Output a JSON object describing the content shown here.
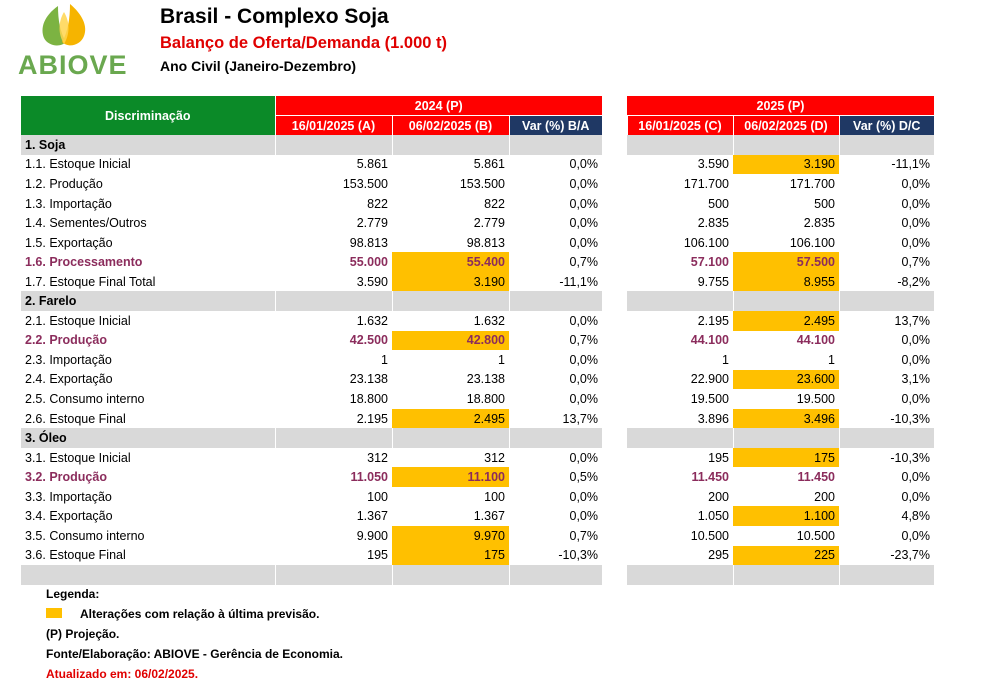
{
  "header": {
    "logo_text": "ABIOVE",
    "title": "Brasil - Complexo Soja",
    "subtitle": "Balanço de Oferta/Demanda (1.000 t)",
    "period": "Ano Civil (Janeiro-Dezembro)"
  },
  "colors": {
    "header_green": "#0b8a28",
    "header_red": "#ff0000",
    "header_navy": "#1f3864",
    "highlight": "#ffc000",
    "section_gray": "#d9d9d9",
    "emphasis_text": "#8b2c5c"
  },
  "table": {
    "discrimination_label": "Discriminação",
    "year_2024": "2024 (P)",
    "year_2025": "2025 (P)",
    "col_a": "16/01/2025 (A)",
    "col_b": "06/02/2025 (B)",
    "col_var_ba": "Var (%) B/A",
    "col_c": "16/01/2025 (C)",
    "col_d": "06/02/2025 (D)",
    "col_var_dc": "Var (%) D/C",
    "sections": [
      {
        "name": "1. Soja",
        "rows": [
          {
            "label": "1.1. Estoque Inicial",
            "a": "5.861",
            "b": "5.861",
            "var_ba": "0,0%",
            "c": "3.590",
            "d": "3.190",
            "var_dc": "-11,1%",
            "hl_b": false,
            "hl_d": true,
            "emph": false
          },
          {
            "label": "1.2. Produção",
            "a": "153.500",
            "b": "153.500",
            "var_ba": "0,0%",
            "c": "171.700",
            "d": "171.700",
            "var_dc": "0,0%",
            "hl_b": false,
            "hl_d": false,
            "emph": false
          },
          {
            "label": "1.3. Importação",
            "a": "822",
            "b": "822",
            "var_ba": "0,0%",
            "c": "500",
            "d": "500",
            "var_dc": "0,0%",
            "hl_b": false,
            "hl_d": false,
            "emph": false
          },
          {
            "label": "1.4. Sementes/Outros",
            "a": "2.779",
            "b": "2.779",
            "var_ba": "0,0%",
            "c": "2.835",
            "d": "2.835",
            "var_dc": "0,0%",
            "hl_b": false,
            "hl_d": false,
            "emph": false
          },
          {
            "label": "1.5. Exportação",
            "a": "98.813",
            "b": "98.813",
            "var_ba": "0,0%",
            "c": "106.100",
            "d": "106.100",
            "var_dc": "0,0%",
            "hl_b": false,
            "hl_d": false,
            "emph": false
          },
          {
            "label": "1.6. Processamento",
            "a": "55.000",
            "b": "55.400",
            "var_ba": "0,7%",
            "c": "57.100",
            "d": "57.500",
            "var_dc": "0,7%",
            "hl_b": true,
            "hl_d": true,
            "emph": true
          },
          {
            "label": "1.7. Estoque Final Total",
            "a": "3.590",
            "b": "3.190",
            "var_ba": "-11,1%",
            "c": "9.755",
            "d": "8.955",
            "var_dc": "-8,2%",
            "hl_b": true,
            "hl_d": true,
            "emph": false
          }
        ]
      },
      {
        "name": "2. Farelo",
        "rows": [
          {
            "label": "2.1. Estoque Inicial",
            "a": "1.632",
            "b": "1.632",
            "var_ba": "0,0%",
            "c": "2.195",
            "d": "2.495",
            "var_dc": "13,7%",
            "hl_b": false,
            "hl_d": true,
            "emph": false
          },
          {
            "label": "2.2. Produção",
            "a": "42.500",
            "b": "42.800",
            "var_ba": "0,7%",
            "c": "44.100",
            "d": "44.100",
            "var_dc": "0,0%",
            "hl_b": true,
            "hl_d": false,
            "emph": true
          },
          {
            "label": "2.3. Importação",
            "a": "1",
            "b": "1",
            "var_ba": "0,0%",
            "c": "1",
            "d": "1",
            "var_dc": "0,0%",
            "hl_b": false,
            "hl_d": false,
            "emph": false
          },
          {
            "label": "2.4. Exportação",
            "a": "23.138",
            "b": "23.138",
            "var_ba": "0,0%",
            "c": "22.900",
            "d": "23.600",
            "var_dc": "3,1%",
            "hl_b": false,
            "hl_d": true,
            "emph": false
          },
          {
            "label": "2.5. Consumo interno",
            "a": "18.800",
            "b": "18.800",
            "var_ba": "0,0%",
            "c": "19.500",
            "d": "19.500",
            "var_dc": "0,0%",
            "hl_b": false,
            "hl_d": false,
            "emph": false
          },
          {
            "label": "2.6. Estoque Final",
            "a": "2.195",
            "b": "2.495",
            "var_ba": "13,7%",
            "c": "3.896",
            "d": "3.496",
            "var_dc": "-10,3%",
            "hl_b": true,
            "hl_d": true,
            "emph": false
          }
        ]
      },
      {
        "name": "3. Óleo",
        "rows": [
          {
            "label": "3.1. Estoque Inicial",
            "a": "312",
            "b": "312",
            "var_ba": "0,0%",
            "c": "195",
            "d": "175",
            "var_dc": "-10,3%",
            "hl_b": false,
            "hl_d": true,
            "emph": false
          },
          {
            "label": "3.2. Produção",
            "a": "11.050",
            "b": "11.100",
            "var_ba": "0,5%",
            "c": "11.450",
            "d": "11.450",
            "var_dc": "0,0%",
            "hl_b": true,
            "hl_d": false,
            "emph": true
          },
          {
            "label": "3.3. Importação",
            "a": "100",
            "b": "100",
            "var_ba": "0,0%",
            "c": "200",
            "d": "200",
            "var_dc": "0,0%",
            "hl_b": false,
            "hl_d": false,
            "emph": false
          },
          {
            "label": "3.4. Exportação",
            "a": "1.367",
            "b": "1.367",
            "var_ba": "0,0%",
            "c": "1.050",
            "d": "1.100",
            "var_dc": "4,8%",
            "hl_b": false,
            "hl_d": true,
            "emph": false
          },
          {
            "label": "3.5. Consumo interno",
            "a": "9.900",
            "b": "9.970",
            "var_ba": "0,7%",
            "c": "10.500",
            "d": "10.500",
            "var_dc": "0,0%",
            "hl_b": true,
            "hl_d": false,
            "emph": false
          },
          {
            "label": "3.6. Estoque Final",
            "a": "195",
            "b": "175",
            "var_ba": "-10,3%",
            "c": "295",
            "d": "225",
            "var_dc": "-23,7%",
            "hl_b": true,
            "hl_d": true,
            "emph": false
          }
        ]
      }
    ]
  },
  "legend": {
    "title": "Legenda:",
    "highlight_text": "Alterações com relação à última previsão.",
    "projection": "(P) Projeção.",
    "source": "Fonte/Elaboração: ABIOVE - Gerência de Economia.",
    "updated": "Atualizado em: 06/02/2025."
  }
}
